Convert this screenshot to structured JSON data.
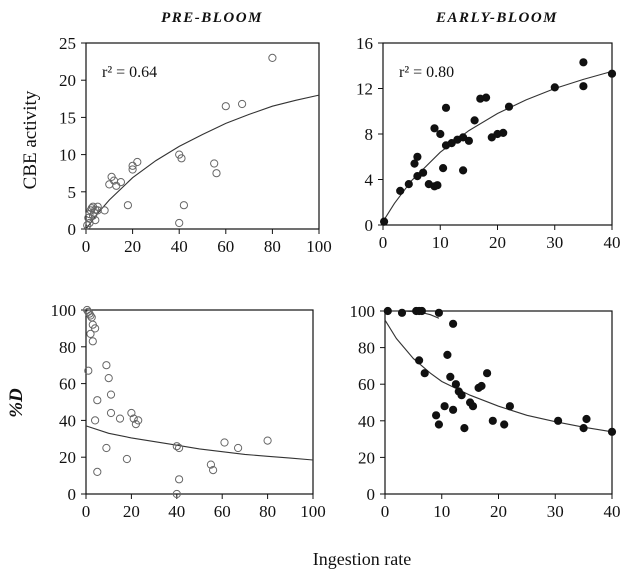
{
  "figure": {
    "xlabel": "Ingestion rate",
    "ylabel_top": "CBE activity",
    "ylabel_bottom": "%D",
    "col_title_left": "PRE-BLOOM",
    "col_title_right": "EARLY-BLOOM"
  },
  "chart_data": [
    {
      "id": "prebloom-cbe",
      "type": "scatter",
      "title": "PRE-BLOOM",
      "xlabel": "",
      "ylabel": "CBE activity",
      "xlim": [
        0,
        100
      ],
      "ylim": [
        0,
        25
      ],
      "xticks": [
        0,
        20,
        40,
        60,
        80,
        100
      ],
      "yticks": [
        0,
        5,
        10,
        15,
        20,
        25
      ],
      "annotation": "r² = 0.64",
      "marker": "open-circle",
      "points": [
        [
          0.5,
          0.5
        ],
        [
          1,
          1.5
        ],
        [
          1.5,
          2
        ],
        [
          2,
          2.5
        ],
        [
          2.5,
          2.8
        ],
        [
          3,
          3
        ],
        [
          3.5,
          2.2
        ],
        [
          4,
          2.6
        ],
        [
          5,
          2.5
        ],
        [
          4,
          1.2
        ],
        [
          1.5,
          0.8
        ],
        [
          3,
          1.8
        ],
        [
          5,
          3
        ],
        [
          8,
          2.5
        ],
        [
          10,
          6
        ],
        [
          11,
          7
        ],
        [
          12,
          6.5
        ],
        [
          13,
          5.8
        ],
        [
          15,
          6.3
        ],
        [
          18,
          3.2
        ],
        [
          20,
          8.5
        ],
        [
          20,
          8
        ],
        [
          22,
          9
        ],
        [
          40,
          10
        ],
        [
          41,
          9.5
        ],
        [
          40,
          0.8
        ],
        [
          42,
          3.2
        ],
        [
          55,
          8.8
        ],
        [
          56,
          7.5
        ],
        [
          60,
          16.5
        ],
        [
          67,
          16.8
        ],
        [
          80,
          23
        ]
      ],
      "fit": [
        [
          0,
          0
        ],
        [
          5,
          2.1
        ],
        [
          10,
          3.9
        ],
        [
          20,
          6.9
        ],
        [
          30,
          9.2
        ],
        [
          40,
          11.1
        ],
        [
          50,
          12.7
        ],
        [
          60,
          14.2
        ],
        [
          70,
          15.4
        ],
        [
          80,
          16.5
        ],
        [
          90,
          17.3
        ],
        [
          100,
          18
        ]
      ]
    },
    {
      "id": "earlybloom-cbe",
      "type": "scatter",
      "title": "EARLY-BLOOM",
      "xlabel": "",
      "ylabel": "",
      "xlim": [
        0,
        40
      ],
      "ylim": [
        0,
        16
      ],
      "xticks": [
        0,
        10,
        20,
        30,
        40
      ],
      "yticks": [
        0,
        4,
        8,
        12,
        16
      ],
      "annotation": "r² = 0.80",
      "marker": "filled-circle",
      "points": [
        [
          0.2,
          0.3
        ],
        [
          3,
          3
        ],
        [
          4.5,
          3.6
        ],
        [
          5.5,
          5.4
        ],
        [
          6,
          6
        ],
        [
          6,
          4.3
        ],
        [
          7,
          4.6
        ],
        [
          8,
          3.6
        ],
        [
          9,
          8.5
        ],
        [
          9,
          3.4
        ],
        [
          9.5,
          3.5
        ],
        [
          10,
          8
        ],
        [
          10.5,
          5
        ],
        [
          11,
          10.3
        ],
        [
          11,
          7
        ],
        [
          12,
          7.2
        ],
        [
          13,
          7.5
        ],
        [
          14,
          7.7
        ],
        [
          14,
          4.8
        ],
        [
          15,
          7.4
        ],
        [
          16,
          9.2
        ],
        [
          17,
          11.1
        ],
        [
          18,
          11.2
        ],
        [
          19,
          7.7
        ],
        [
          20,
          8
        ],
        [
          21,
          8.1
        ],
        [
          22,
          10.4
        ],
        [
          30,
          12.1
        ],
        [
          35,
          14.3
        ],
        [
          35,
          12.2
        ],
        [
          40,
          13.3
        ]
      ],
      "fit": [
        [
          0,
          0.3
        ],
        [
          2,
          1.9
        ],
        [
          5,
          3.9
        ],
        [
          10,
          6.4
        ],
        [
          15,
          8.3
        ],
        [
          20,
          9.8
        ],
        [
          25,
          11
        ],
        [
          30,
          12
        ],
        [
          35,
          12.8
        ],
        [
          40,
          13.5
        ]
      ]
    },
    {
      "id": "prebloom-d",
      "type": "scatter",
      "title": "",
      "xlabel": "Ingestion rate",
      "ylabel": "%D",
      "xlim": [
        0,
        100
      ],
      "ylim": [
        0,
        100
      ],
      "xticks": [
        0,
        20,
        40,
        60,
        80,
        100
      ],
      "yticks": [
        0,
        20,
        40,
        60,
        80,
        100
      ],
      "marker": "open-circle",
      "points": [
        [
          0.5,
          100
        ],
        [
          1,
          99
        ],
        [
          1.5,
          98
        ],
        [
          2,
          97
        ],
        [
          2.5,
          96
        ],
        [
          3,
          92
        ],
        [
          4,
          90
        ],
        [
          2,
          87
        ],
        [
          3,
          83
        ],
        [
          1,
          67
        ],
        [
          5,
          51
        ],
        [
          4,
          40
        ],
        [
          5,
          12
        ],
        [
          9,
          70
        ],
        [
          10,
          63
        ],
        [
          11,
          54
        ],
        [
          11,
          44
        ],
        [
          9,
          25
        ],
        [
          15,
          41
        ],
        [
          18,
          19
        ],
        [
          20,
          44
        ],
        [
          21,
          41
        ],
        [
          22,
          38
        ],
        [
          23,
          40
        ],
        [
          40,
          26
        ],
        [
          41,
          25
        ],
        [
          41,
          8
        ],
        [
          40,
          0
        ],
        [
          55,
          16
        ],
        [
          56,
          13
        ],
        [
          61,
          28
        ],
        [
          67,
          25
        ],
        [
          80,
          29
        ]
      ],
      "fit": [
        [
          0,
          37
        ],
        [
          10,
          33
        ],
        [
          20,
          30.5
        ],
        [
          30,
          28.5
        ],
        [
          40,
          26.5
        ],
        [
          50,
          24.5
        ],
        [
          60,
          23
        ],
        [
          70,
          21.5
        ],
        [
          80,
          20.5
        ],
        [
          90,
          19.5
        ],
        [
          100,
          18.5
        ]
      ]
    },
    {
      "id": "earlybloom-d",
      "type": "scatter",
      "title": "",
      "xlabel": "Ingestion rate",
      "ylabel": "",
      "xlim": [
        0,
        40
      ],
      "ylim": [
        0,
        100
      ],
      "xticks": [
        0,
        10,
        20,
        30,
        40
      ],
      "yticks": [
        0,
        20,
        40,
        60,
        80,
        100
      ],
      "marker": "filled-circle",
      "points": [
        [
          0.5,
          100
        ],
        [
          3,
          99
        ],
        [
          5.5,
          100
        ],
        [
          6,
          100
        ],
        [
          6.5,
          100
        ],
        [
          9.5,
          99
        ],
        [
          12,
          93
        ],
        [
          6,
          73
        ],
        [
          7,
          66
        ],
        [
          9,
          43
        ],
        [
          9.5,
          38
        ],
        [
          10.5,
          48
        ],
        [
          11,
          76
        ],
        [
          11.5,
          64
        ],
        [
          12,
          46
        ],
        [
          12.5,
          60
        ],
        [
          13,
          56
        ],
        [
          13.5,
          54
        ],
        [
          14,
          36
        ],
        [
          15,
          50
        ],
        [
          15.5,
          48
        ],
        [
          16.5,
          58
        ],
        [
          17,
          59
        ],
        [
          18,
          66
        ],
        [
          19,
          40
        ],
        [
          21,
          38
        ],
        [
          22,
          48
        ],
        [
          30.5,
          40
        ],
        [
          35,
          36
        ],
        [
          35.5,
          41
        ],
        [
          40,
          34
        ]
      ],
      "fit": [
        [
          0,
          95
        ],
        [
          2,
          85
        ],
        [
          5,
          74
        ],
        [
          8,
          66
        ],
        [
          10,
          61.5
        ],
        [
          15,
          54
        ],
        [
          20,
          48
        ],
        [
          25,
          43
        ],
        [
          30,
          39.5
        ],
        [
          35,
          36.5
        ],
        [
          40,
          34
        ]
      ],
      "fit_flat": [
        [
          0,
          100
        ],
        [
          3,
          100
        ],
        [
          6,
          99.5
        ],
        [
          8,
          98
        ],
        [
          9.5,
          96
        ]
      ]
    }
  ]
}
